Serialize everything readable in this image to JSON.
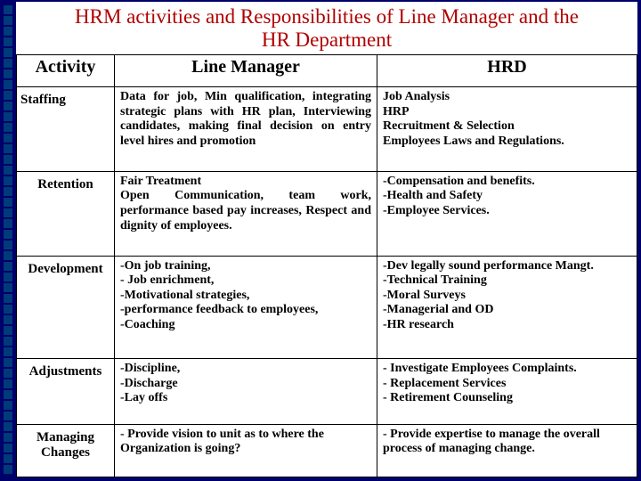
{
  "title_line1": "HRM activities and Responsibilities of  Line Manager and the",
  "title_line2": "HR Department",
  "headers": {
    "activity": "Activity",
    "line_manager": "Line Manager",
    "hrd": "HRD"
  },
  "rows": {
    "staffing": {
      "activity": "Staffing",
      "lm": "Data for job, Min qualification, integrating strategic plans with HR plan, Interviewing candidates, making final decision on entry level hires and promotion",
      "hrd": [
        "Job Analysis",
        "HRP",
        "Recruitment & Selection",
        "Employees Laws and Regulations."
      ]
    },
    "retention": {
      "activity": "Retention",
      "lm_l1": " Fair Treatment",
      "lm_l2": "  Open Communication, team work, performance based pay increases, Respect and dignity of employees.",
      "hrd": [
        "Compensation and benefits.",
        "Health and Safety",
        "Employee Services."
      ]
    },
    "development": {
      "activity": "Development",
      "lm": [
        "On job training,",
        " Job enrichment,",
        "Motivational strategies,",
        "performance feedback to employees,",
        "Coaching"
      ],
      "hrd": [
        "Dev legally sound performance Mangt.",
        "Technical Training",
        "Moral Surveys",
        "Managerial and OD",
        "HR research"
      ]
    },
    "adjustments": {
      "activity": "Adjustments",
      "lm": [
        "Discipline,",
        "Discharge",
        "Lay offs"
      ],
      "hrd": [
        " Investigate Employees Complaints.",
        "Replacement Services",
        "Retirement Counseling"
      ]
    },
    "changes": {
      "activity": "Managing Changes",
      "lm": "- Provide vision to unit as to where the Organization is going?",
      "hrd": "- Provide expertise to manage the overall process of managing change."
    }
  },
  "colors": {
    "slide_bg": "#00006b",
    "page_bg": "#ffffff",
    "title_color": "#b00000",
    "border_color": "#000000",
    "deco_color": "#003a7a"
  }
}
